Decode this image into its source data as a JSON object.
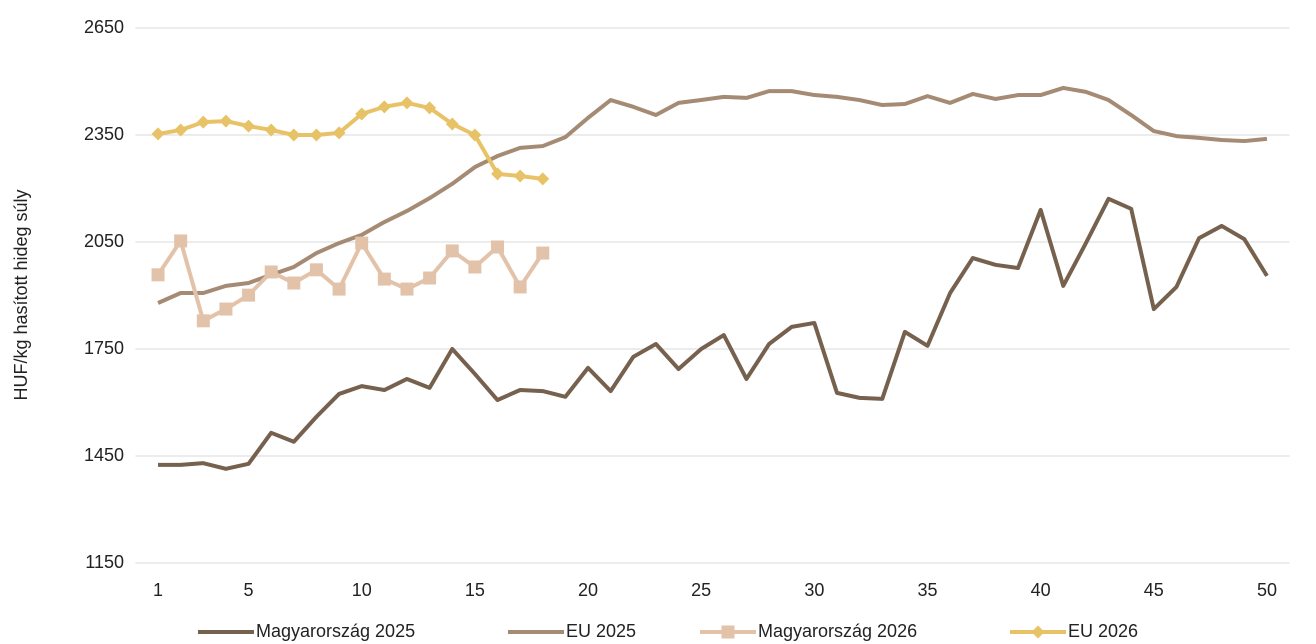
{
  "chart_data": {
    "type": "line",
    "y_label": "HUF/kg hasított hideg súly",
    "x": [
      1,
      2,
      3,
      4,
      5,
      6,
      7,
      8,
      9,
      10,
      11,
      12,
      13,
      14,
      15,
      16,
      17,
      18,
      19,
      20,
      21,
      22,
      23,
      24,
      25,
      26,
      27,
      28,
      29,
      30,
      31,
      32,
      33,
      34,
      35,
      36,
      37,
      38,
      39,
      40,
      41,
      42,
      43,
      44,
      45,
      46,
      47,
      48,
      49,
      50
    ],
    "xlim": [
      0,
      51
    ],
    "xticks": [
      1,
      5,
      10,
      15,
      20,
      25,
      30,
      35,
      40,
      45,
      50
    ],
    "ylim": [
      1150,
      2650
    ],
    "yticks": [
      1150,
      1450,
      1750,
      2050,
      2350,
      2650
    ],
    "grid": true,
    "legend": "bottom",
    "series": [
      {
        "name": "Magyarország 2025",
        "color": "#76604e",
        "marker": "none",
        "values": [
          1425,
          1425,
          1430,
          1414,
          1428,
          1515,
          1490,
          1560,
          1624,
          1646,
          1635,
          1666,
          1641,
          1750,
          1680,
          1607,
          1635,
          1632,
          1616,
          1697,
          1632,
          1728,
          1764,
          1694,
          1750,
          1789,
          1666,
          1764,
          1812,
          1823,
          1627,
          1613,
          1610,
          1798,
          1759,
          1907,
          2005,
          1986,
          1977,
          2140,
          1927,
          2047,
          2171,
          2143,
          1862,
          1924,
          2061,
          2095,
          2058,
          1955
        ]
      },
      {
        "name": "EU 2025",
        "color": "#a58a74",
        "marker": "none",
        "values": [
          1879,
          1907,
          1907,
          1927,
          1935,
          1958,
          1980,
          2019,
          2047,
          2070,
          2106,
          2137,
          2173,
          2213,
          2260,
          2291,
          2314,
          2319,
          2344,
          2398,
          2448,
          2429,
          2406,
          2440,
          2448,
          2457,
          2454,
          2473,
          2473,
          2462,
          2457,
          2448,
          2434,
          2437,
          2459,
          2440,
          2465,
          2451,
          2462,
          2462,
          2482,
          2471,
          2448,
          2406,
          2361,
          2347,
          2342,
          2336,
          2333,
          2339
        ]
      },
      {
        "name": "Magyarország 2026",
        "color": "#e2c3aa",
        "marker": "square",
        "values": [
          1958,
          2053,
          1829,
          1862,
          1901,
          1966,
          1935,
          1972,
          1918,
          2047,
          1946,
          1918,
          1949,
          2025,
          1980,
          2036,
          1924,
          2019,
          null,
          null,
          null,
          null,
          null,
          null,
          null,
          null,
          null,
          null,
          null,
          null,
          null,
          null,
          null,
          null,
          null,
          null,
          null,
          null,
          null,
          null,
          null,
          null,
          null,
          null,
          null,
          null,
          null,
          null,
          null,
          null
        ]
      },
      {
        "name": "EU 2026",
        "color": "#e8c267",
        "marker": "diamond",
        "values": [
          2353,
          2364,
          2386,
          2389,
          2375,
          2364,
          2350,
          2350,
          2356,
          2409,
          2429,
          2440,
          2426,
          2381,
          2350,
          2241,
          2235,
          2227,
          null,
          null,
          null,
          null,
          null,
          null,
          null,
          null,
          null,
          null,
          null,
          null,
          null,
          null,
          null,
          null,
          null,
          null,
          null,
          null,
          null,
          null,
          null,
          null,
          null,
          null,
          null,
          null,
          null,
          null,
          null,
          null
        ]
      }
    ]
  }
}
